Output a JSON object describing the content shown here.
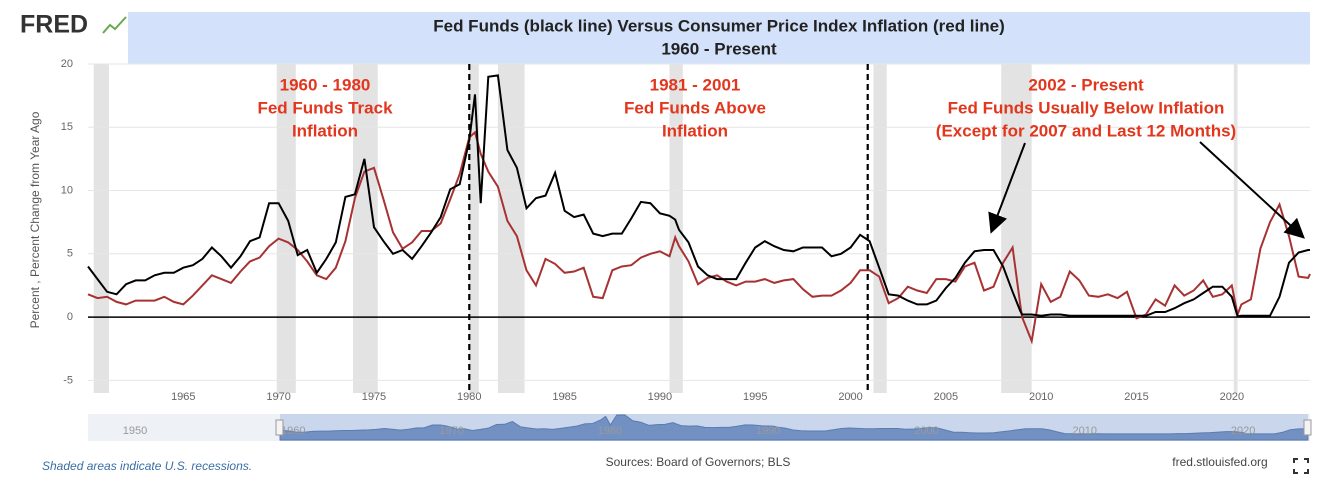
{
  "logo": "FRED",
  "chart_data": {
    "type": "line",
    "title": "Fed Funds (black line) Versus Consumer Price Index Inflation (red line)",
    "subtitle": "1960 - Present",
    "y_label": "Percent , Percent Change from Year Ago",
    "xlim": [
      1960,
      2024.1
    ],
    "xticks": [
      1965,
      1970,
      1975,
      1980,
      1985,
      1990,
      1995,
      2000,
      2005,
      2010,
      2015,
      2020
    ],
    "ylim": [
      -6,
      20
    ],
    "yticks": [
      -5,
      0,
      5,
      10,
      15,
      20
    ],
    "grid": true,
    "recessions": [
      [
        1960.3,
        1961.1
      ],
      [
        1969.9,
        1970.9
      ],
      [
        1973.9,
        1975.2
      ],
      [
        1980.0,
        1980.5
      ],
      [
        1981.5,
        1982.9
      ],
      [
        1990.5,
        1991.2
      ],
      [
        2001.2,
        2001.9
      ],
      [
        2007.9,
        2009.5
      ],
      [
        2020.1,
        2020.3
      ]
    ],
    "dividers": [
      1980,
      2000.9
    ],
    "annotations": [
      [
        "1960 - 1980",
        "Fed Funds Track",
        "Inflation"
      ],
      [
        "1981 - 2001",
        "Fed Funds Above",
        "Inflation"
      ],
      [
        "2002 - Present",
        "Fed Funds Usually Below Inflation",
        "(Except for 2007 and Last 12 Months)"
      ]
    ],
    "x": [
      1960.0,
      1960.5,
      1961.0,
      1961.5,
      1962.0,
      1962.5,
      1963.0,
      1963.5,
      1964.0,
      1964.5,
      1965.0,
      1965.5,
      1966.0,
      1966.5,
      1967.0,
      1967.5,
      1968.0,
      1968.5,
      1969.0,
      1969.5,
      1970.0,
      1970.5,
      1971.0,
      1971.5,
      1972.0,
      1972.5,
      1973.0,
      1973.5,
      1974.0,
      1974.5,
      1975.0,
      1975.5,
      1976.0,
      1976.5,
      1977.0,
      1977.5,
      1978.0,
      1978.5,
      1979.0,
      1979.5,
      1980.0,
      1980.3,
      1980.6,
      1981.0,
      1981.5,
      1982.0,
      1982.5,
      1983.0,
      1983.5,
      1984.0,
      1984.5,
      1985.0,
      1985.5,
      1986.0,
      1986.5,
      1987.0,
      1987.5,
      1988.0,
      1988.5,
      1989.0,
      1989.5,
      1990.0,
      1990.5,
      1990.8,
      1991.0,
      1991.5,
      1992.0,
      1992.5,
      1993.0,
      1993.5,
      1994.0,
      1994.5,
      1995.0,
      1995.5,
      1996.0,
      1996.5,
      1997.0,
      1997.5,
      1998.0,
      1998.5,
      1999.0,
      1999.5,
      2000.0,
      2000.5,
      2001.0,
      2001.5,
      2002.0,
      2002.5,
      2003.0,
      2003.5,
      2004.0,
      2004.5,
      2005.0,
      2005.5,
      2006.0,
      2006.5,
      2007.0,
      2007.5,
      2008.0,
      2008.5,
      2008.9,
      2009.0,
      2009.5,
      2010.0,
      2010.5,
      2011.0,
      2011.5,
      2012.0,
      2012.5,
      2013.0,
      2013.5,
      2014.0,
      2014.5,
      2015.0,
      2015.5,
      2016.0,
      2016.5,
      2017.0,
      2017.5,
      2018.0,
      2018.5,
      2019.0,
      2019.5,
      2020.0,
      2020.3,
      2020.5,
      2021.0,
      2021.5,
      2022.0,
      2022.5,
      2023.0,
      2023.5,
      2024.0,
      2024.1
    ],
    "series": [
      {
        "name": "Fed Funds",
        "color": "#000000",
        "values": [
          4.0,
          3.0,
          2.0,
          1.8,
          2.6,
          2.9,
          2.9,
          3.3,
          3.5,
          3.5,
          3.9,
          4.1,
          4.6,
          5.5,
          4.8,
          3.9,
          4.8,
          6.0,
          6.3,
          9.0,
          9.0,
          7.6,
          4.9,
          5.3,
          3.5,
          4.6,
          5.9,
          9.5,
          9.7,
          12.5,
          7.1,
          6.0,
          5.0,
          5.3,
          4.6,
          5.6,
          6.7,
          7.9,
          10.1,
          10.5,
          14.0,
          17.6,
          9.0,
          19.0,
          19.1,
          13.2,
          11.8,
          8.6,
          9.4,
          9.6,
          11.4,
          8.4,
          7.9,
          8.1,
          6.6,
          6.4,
          6.6,
          6.6,
          7.8,
          9.1,
          9.0,
          8.2,
          8.0,
          7.7,
          6.9,
          5.9,
          4.0,
          3.3,
          3.0,
          3.0,
          3.0,
          4.3,
          5.5,
          6.0,
          5.6,
          5.3,
          5.2,
          5.5,
          5.5,
          5.5,
          4.8,
          5.0,
          5.5,
          6.5,
          6.0,
          3.9,
          1.8,
          1.7,
          1.3,
          1.0,
          1.0,
          1.3,
          2.3,
          3.1,
          4.3,
          5.2,
          5.3,
          5.3,
          4.0,
          2.0,
          0.5,
          0.2,
          0.2,
          0.1,
          0.2,
          0.2,
          0.1,
          0.1,
          0.1,
          0.1,
          0.1,
          0.1,
          0.1,
          0.1,
          0.1,
          0.4,
          0.4,
          0.7,
          1.1,
          1.4,
          1.9,
          2.4,
          2.4,
          1.6,
          0.05,
          0.1,
          0.1,
          0.1,
          0.1,
          1.6,
          4.3,
          5.1,
          5.3,
          5.3
        ]
      },
      {
        "name": "CPI Inflation",
        "color": "#a83232",
        "values": [
          1.8,
          1.5,
          1.6,
          1.2,
          1.0,
          1.3,
          1.3,
          1.3,
          1.6,
          1.2,
          1.0,
          1.7,
          2.5,
          3.3,
          3.0,
          2.7,
          3.6,
          4.4,
          4.7,
          5.6,
          6.2,
          5.9,
          5.3,
          4.4,
          3.3,
          3.0,
          3.9,
          6.0,
          9.4,
          11.5,
          11.8,
          9.3,
          6.7,
          5.4,
          5.9,
          6.8,
          6.8,
          7.4,
          9.3,
          11.3,
          14.2,
          14.6,
          12.9,
          11.5,
          10.3,
          7.6,
          6.4,
          3.7,
          2.5,
          4.6,
          4.2,
          3.5,
          3.6,
          3.9,
          1.6,
          1.5,
          3.7,
          4.0,
          4.1,
          4.7,
          5.0,
          5.2,
          4.8,
          6.3,
          5.6,
          4.4,
          2.6,
          3.1,
          3.3,
          2.8,
          2.5,
          2.8,
          2.8,
          3.0,
          2.7,
          2.9,
          3.0,
          2.2,
          1.6,
          1.7,
          1.7,
          2.1,
          2.7,
          3.7,
          3.7,
          3.2,
          1.1,
          1.5,
          2.4,
          2.1,
          1.9,
          3.0,
          3.0,
          2.8,
          4.0,
          4.3,
          2.1,
          2.4,
          4.3,
          5.5,
          1.0,
          0.0,
          -1.9,
          2.6,
          1.2,
          1.6,
          3.6,
          2.9,
          1.7,
          1.6,
          1.8,
          1.5,
          2.0,
          -0.1,
          0.2,
          1.4,
          0.9,
          2.5,
          1.7,
          2.1,
          2.9,
          1.6,
          1.8,
          2.5,
          0.2,
          1.0,
          1.4,
          5.4,
          7.5,
          8.9,
          6.4,
          3.2,
          3.1,
          3.4
        ]
      }
    ]
  },
  "navigator": {
    "labels": [
      "1950",
      "1960",
      "1970",
      "1980",
      "1990",
      "2000",
      "2010",
      "2020"
    ]
  },
  "footer": {
    "note": "Shaded areas indicate U.S. recessions.",
    "sources": "Sources: Board of Governors; BLS",
    "site": "fred.stlouisfed.org"
  }
}
